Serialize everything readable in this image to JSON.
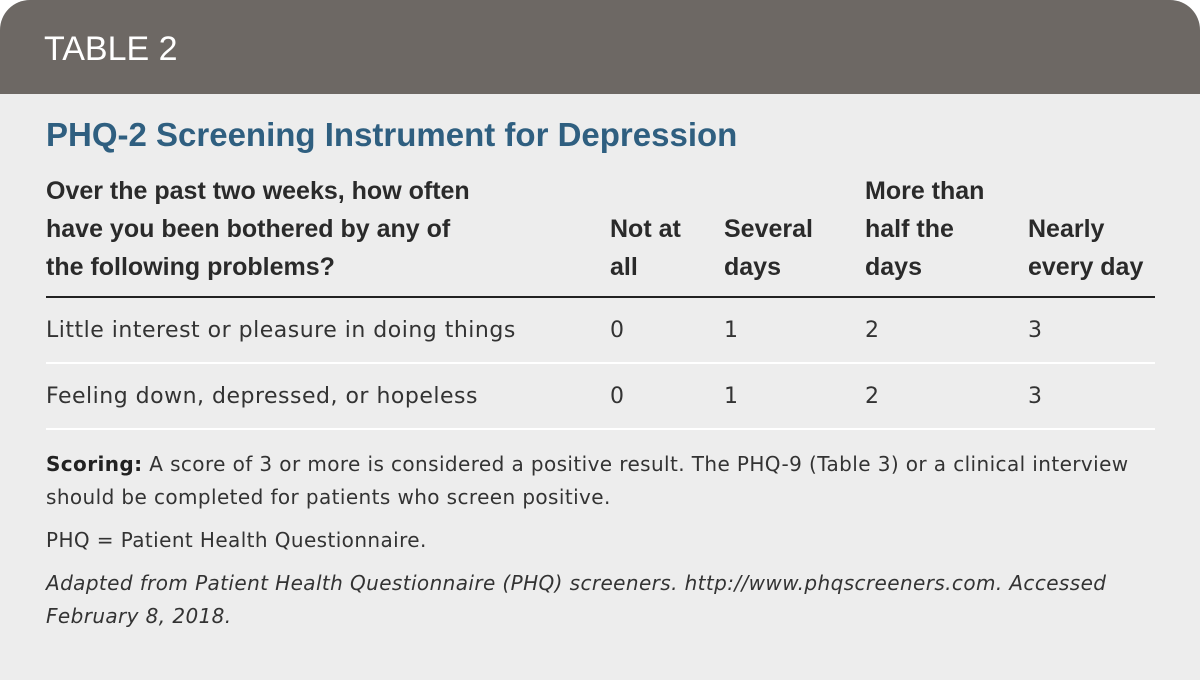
{
  "header": {
    "label": "TABLE 2"
  },
  "title": "PHQ-2 Screening Instrument for Depression",
  "table": {
    "columns": [
      "Over the past two weeks, how often have you been bothered by any of the following problems?",
      "Not at all",
      "Several days",
      "More than half the days",
      "Nearly every day"
    ],
    "rows": [
      [
        "Little interest or pleasure in doing things",
        0,
        1,
        2,
        3
      ],
      [
        "Feeling down, depressed, or hopeless",
        0,
        1,
        2,
        3
      ]
    ]
  },
  "notes": {
    "scoring_label": "Scoring:",
    "scoring_text": "A score of 3 or more is considered a positive result. The PHQ-9 (Table 3) or a clinical interview should be completed for patients who screen positive.",
    "abbreviation": "PHQ = Patient Health Questionnaire.",
    "source": "Adapted from Patient Health Questionnaire (PHQ) screeners. http://www.phqscreeners.com. Accessed February 8, 2018."
  }
}
